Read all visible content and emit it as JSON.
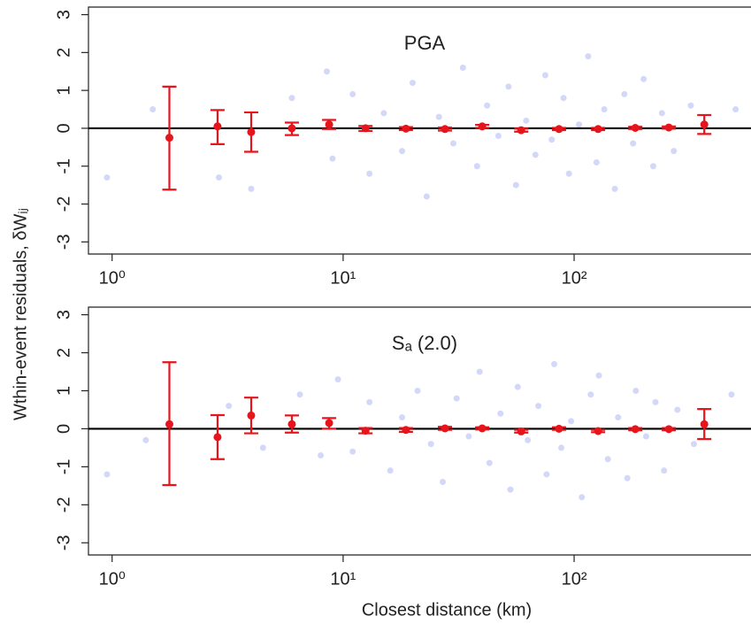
{
  "chart_data": [
    {
      "type": "scatter",
      "title": "PGA",
      "hline": 0,
      "xlog": true,
      "xlim": [
        0.79,
        583
      ],
      "ylim": [
        -3.32,
        3.2
      ],
      "xticks": [
        {
          "value": 1,
          "label": "10⁰"
        },
        {
          "value": 10,
          "label": "10¹"
        },
        {
          "value": 100,
          "label": "10²"
        }
      ],
      "yticks": [
        -3,
        -2,
        -1,
        0,
        1,
        2,
        3
      ],
      "points": {
        "color": "#3a4fe0",
        "x": [
          1.5,
          0.95,
          2.9,
          4,
          6,
          8.5,
          9,
          11,
          13,
          15,
          18,
          20,
          23,
          26,
          30,
          33,
          38,
          42,
          47,
          52,
          56,
          62,
          68,
          75,
          80,
          90,
          95,
          105,
          115,
          125,
          135,
          150,
          165,
          180,
          200,
          220,
          240,
          270,
          320,
          500
        ],
        "y": [
          0.5,
          -1.3,
          -1.3,
          -1.6,
          0.8,
          1.5,
          -0.8,
          0.9,
          -1.2,
          0.4,
          -0.6,
          1.2,
          -1.8,
          0.3,
          -0.4,
          1.6,
          -1,
          0.6,
          -0.2,
          1.1,
          -1.5,
          0.2,
          -0.7,
          1.4,
          -0.3,
          0.8,
          -1.2,
          0.1,
          1.9,
          -0.9,
          0.5,
          -1.6,
          0.9,
          -0.4,
          1.3,
          -1,
          0.4,
          -0.6,
          0.6,
          0.5
        ]
      },
      "means": {
        "color": "#e8141c",
        "x": [
          1.77,
          2.86,
          4.0,
          6.0,
          8.7,
          12.5,
          18.7,
          27.6,
          40,
          59,
          86,
          127,
          184,
          257,
          366
        ],
        "y": [
          -0.25,
          0.05,
          -0.1,
          0.0,
          0.1,
          0.0,
          -0.01,
          -0.02,
          0.05,
          -0.05,
          -0.02,
          -0.02,
          0.01,
          0.02,
          0.1
        ],
        "low": [
          -1.62,
          -0.42,
          -0.62,
          -0.18,
          -0.02,
          -0.07,
          -0.05,
          -0.06,
          0.01,
          -0.09,
          -0.05,
          -0.05,
          -0.02,
          -0.01,
          -0.15
        ],
        "high": [
          1.1,
          0.48,
          0.42,
          0.15,
          0.22,
          0.06,
          0.03,
          0.02,
          0.09,
          -0.01,
          0.01,
          0.01,
          0.04,
          0.05,
          0.35
        ]
      }
    },
    {
      "type": "scatter",
      "title": "Sₐ (2.0)",
      "hline": 0,
      "xlog": true,
      "xlim": [
        0.79,
        583
      ],
      "ylim": [
        -3.32,
        3.2
      ],
      "xticks": [
        {
          "value": 1,
          "label": "10⁰"
        },
        {
          "value": 10,
          "label": "10¹"
        },
        {
          "value": 100,
          "label": "10²"
        }
      ],
      "yticks": [
        -3,
        -2,
        -1,
        0,
        1,
        2,
        3
      ],
      "points": {
        "color": "#3a4fe0",
        "x": [
          1.4,
          0.95,
          3.2,
          4.5,
          6.5,
          8,
          9.5,
          11,
          13,
          16,
          18,
          21,
          24,
          27,
          31,
          35,
          39,
          43,
          48,
          53,
          57,
          63,
          70,
          76,
          82,
          88,
          97,
          108,
          118,
          128,
          140,
          155,
          170,
          185,
          205,
          225,
          245,
          280,
          330,
          480
        ],
        "y": [
          -0.3,
          -1.2,
          0.6,
          -0.5,
          0.9,
          -0.7,
          1.3,
          -0.6,
          0.7,
          -1.1,
          0.3,
          1.0,
          -0.4,
          -1.4,
          0.8,
          -0.2,
          1.5,
          -0.9,
          0.4,
          -1.6,
          1.1,
          -0.3,
          0.6,
          -1.2,
          1.7,
          -0.5,
          0.2,
          -1.8,
          0.9,
          1.4,
          -0.8,
          0.3,
          -1.3,
          1.0,
          -0.2,
          0.7,
          -1.1,
          0.5,
          -0.4,
          0.9
        ]
      },
      "means": {
        "color": "#e8141c",
        "x": [
          1.77,
          2.86,
          4.0,
          6.0,
          8.7,
          12.5,
          18.7,
          27.6,
          40,
          59,
          86,
          127,
          184,
          257,
          366
        ],
        "y": [
          0.12,
          -0.22,
          0.35,
          0.12,
          0.15,
          -0.05,
          -0.03,
          0.01,
          0.01,
          -0.07,
          0.0,
          -0.06,
          -0.01,
          -0.01,
          0.12
        ],
        "low": [
          -1.48,
          -0.8,
          -0.12,
          -0.1,
          0.0,
          -0.12,
          -0.08,
          -0.03,
          -0.02,
          -0.1,
          -0.03,
          -0.09,
          -0.04,
          -0.04,
          -0.27
        ],
        "high": [
          1.75,
          0.36,
          0.82,
          0.35,
          0.28,
          0.02,
          0.02,
          0.05,
          0.04,
          -0.03,
          0.04,
          -0.03,
          0.02,
          0.02,
          0.52
        ]
      }
    }
  ],
  "y_label": "Wthin-event residuals, δWᵢⱼ",
  "x_label": "Closest distance (km)"
}
